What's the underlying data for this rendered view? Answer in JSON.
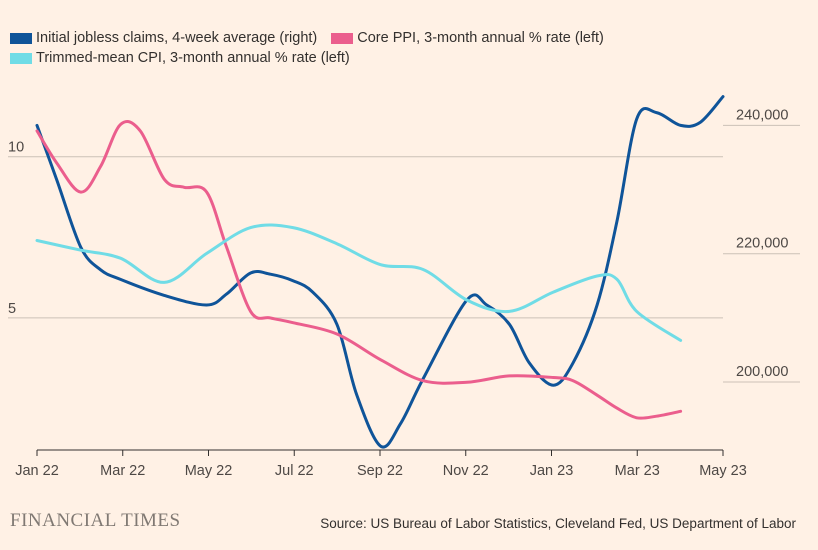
{
  "legend": [
    {
      "label": "Initial jobless claims, 4-week average (right)",
      "color": "#0f5499"
    },
    {
      "label": "Core PPI, 3-month annual % rate (left)",
      "color": "#eb5e8d"
    },
    {
      "label": "Trimmed-mean CPI, 3-month annual % rate (left)",
      "color": "#70dce6"
    }
  ],
  "footer": {
    "logo": "FINANCIAL TIMES",
    "source": "Source: US Bureau of Labor Statistics, Cleveland Fed, US Department of Labor"
  },
  "chart_data": {
    "type": "line",
    "title": "",
    "x_ticks": [
      "Jan 22",
      "Mar 22",
      "May 22",
      "Jul 22",
      "Sep 22",
      "Nov 22",
      "Jan 23",
      "Mar 23",
      "May 23"
    ],
    "xlim": [
      "2022-01-01",
      "2023-05-01"
    ],
    "y_left": {
      "ticks": [
        5,
        10
      ],
      "tick_labels": [
        "5",
        "10"
      ],
      "ylim": [
        0.9,
        13
      ]
    },
    "y_right": {
      "ticks": [
        200000,
        220000,
        240000
      ],
      "tick_labels": [
        "200,000",
        "220,000",
        "240,000"
      ],
      "ylim": [
        189400,
        250200
      ]
    },
    "grid": true,
    "legend_position": "top-left",
    "series": [
      {
        "name": "Initial jobless claims, 4-week average (right)",
        "axis": "right",
        "color": "#0f5499",
        "points": [
          [
            "2022-01-01",
            240000
          ],
          [
            "2022-01-15",
            231500
          ],
          [
            "2022-02-01",
            221000
          ],
          [
            "2022-02-15",
            217500
          ],
          [
            "2022-03-01",
            216000
          ],
          [
            "2022-04-01",
            213500
          ],
          [
            "2022-05-01",
            212000
          ],
          [
            "2022-05-15",
            213700
          ],
          [
            "2022-06-01",
            217000
          ],
          [
            "2022-06-15",
            216800
          ],
          [
            "2022-07-01",
            215800
          ],
          [
            "2022-07-15",
            214000
          ],
          [
            "2022-08-01",
            209000
          ],
          [
            "2022-08-15",
            198000
          ],
          [
            "2022-09-01",
            190000
          ],
          [
            "2022-09-15",
            193500
          ],
          [
            "2022-10-01",
            200500
          ],
          [
            "2022-11-01",
            212800
          ],
          [
            "2022-11-15",
            212000
          ],
          [
            "2022-12-01",
            209000
          ],
          [
            "2022-12-15",
            203000
          ],
          [
            "2023-01-01",
            199500
          ],
          [
            "2023-01-15",
            203000
          ],
          [
            "2023-02-01",
            212000
          ],
          [
            "2023-02-15",
            225000
          ],
          [
            "2023-03-01",
            241000
          ],
          [
            "2023-03-15",
            242000
          ],
          [
            "2023-04-01",
            240000
          ],
          [
            "2023-04-15",
            240500
          ],
          [
            "2023-05-01",
            244500
          ]
        ]
      },
      {
        "name": "Core PPI, 3-month annual % rate (left)",
        "axis": "left",
        "color": "#eb5e8d",
        "points": [
          [
            "2022-01-01",
            10.8
          ],
          [
            "2022-01-15",
            9.8
          ],
          [
            "2022-02-01",
            8.9
          ],
          [
            "2022-02-15",
            9.7
          ],
          [
            "2022-03-01",
            11.0
          ],
          [
            "2022-03-15",
            10.8
          ],
          [
            "2022-04-01",
            9.3
          ],
          [
            "2022-04-15",
            9.05
          ],
          [
            "2022-05-01",
            8.9
          ],
          [
            "2022-05-15",
            7.2
          ],
          [
            "2022-06-01",
            5.2
          ],
          [
            "2022-06-15",
            5.0
          ],
          [
            "2022-07-01",
            4.85
          ],
          [
            "2022-08-01",
            4.5
          ],
          [
            "2022-09-01",
            3.7
          ],
          [
            "2022-10-01",
            3.05
          ],
          [
            "2022-11-01",
            3.0
          ],
          [
            "2022-12-01",
            3.2
          ],
          [
            "2023-01-01",
            3.15
          ],
          [
            "2023-01-15",
            3.05
          ],
          [
            "2023-02-01",
            2.6
          ],
          [
            "2023-02-15",
            2.2
          ],
          [
            "2023-03-01",
            1.9
          ],
          [
            "2023-03-15",
            1.95
          ],
          [
            "2023-04-01",
            2.1
          ]
        ]
      },
      {
        "name": "Trimmed-mean CPI, 3-month annual % rate (left)",
        "axis": "left",
        "color": "#70dce6",
        "points": [
          [
            "2022-01-01",
            7.4
          ],
          [
            "2022-02-01",
            7.1
          ],
          [
            "2022-03-01",
            6.85
          ],
          [
            "2022-04-01",
            6.1
          ],
          [
            "2022-05-01",
            7.0
          ],
          [
            "2022-06-01",
            7.8
          ],
          [
            "2022-07-01",
            7.8
          ],
          [
            "2022-08-01",
            7.3
          ],
          [
            "2022-09-01",
            6.65
          ],
          [
            "2022-10-01",
            6.5
          ],
          [
            "2022-11-01",
            5.55
          ],
          [
            "2022-12-01",
            5.2
          ],
          [
            "2023-01-01",
            5.8
          ],
          [
            "2023-02-01",
            6.3
          ],
          [
            "2023-02-15",
            6.2
          ],
          [
            "2023-03-01",
            5.2
          ],
          [
            "2023-04-01",
            4.3
          ]
        ]
      }
    ]
  }
}
